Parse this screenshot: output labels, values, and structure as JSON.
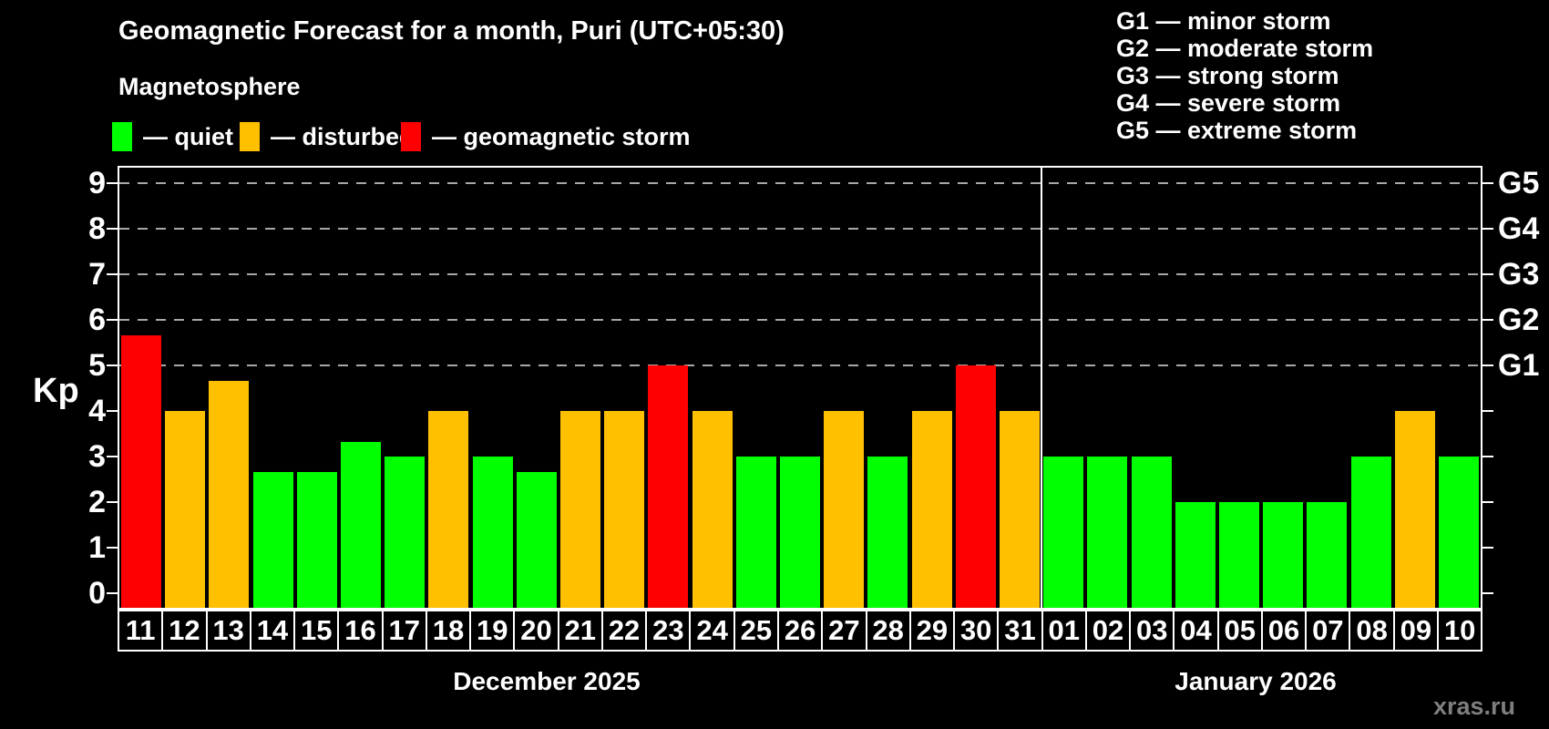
{
  "title": "Geomagnetic Forecast for a month, Puri (UTC+05:30)",
  "subtitle": "Magnetosphere",
  "legend": {
    "items": [
      {
        "key": "quiet",
        "label": "— quiet",
        "color": "#00ff00"
      },
      {
        "key": "disturbed",
        "label": "— disturbed",
        "color": "#ffc000"
      },
      {
        "key": "storm",
        "label": "— geomagnetic storm",
        "color": "#ff0000"
      }
    ]
  },
  "storm_scale_legend": [
    "G1 — minor storm",
    "G2 — moderate storm",
    "G3 — strong storm",
    "G4 — severe storm",
    "G5 — extreme storm"
  ],
  "watermark": "xras.ru",
  "chart_data": {
    "type": "bar",
    "ylabel": "Kp",
    "ylim": [
      -0.32,
      9.38
    ],
    "y_ticks": [
      0,
      1,
      2,
      3,
      4,
      5,
      6,
      7,
      8,
      9
    ],
    "gridlines_at_kp": [
      5,
      6,
      7,
      8,
      9
    ],
    "grid_style": "horizontal dashed gray lines at storm levels only",
    "legend_position": "top",
    "right_axis_labels": [
      {
        "label": "G1",
        "kp": 5
      },
      {
        "label": "G2",
        "kp": 6
      },
      {
        "label": "G3",
        "kp": 7
      },
      {
        "label": "G4",
        "kp": 8
      },
      {
        "label": "G5",
        "kp": 9
      }
    ],
    "status_colors": {
      "quiet": "#00ff00",
      "disturbed": "#ffc000",
      "storm": "#ff0000"
    },
    "months": [
      {
        "label": "December 2025",
        "days": [
          {
            "day": "11",
            "kp": 5.67,
            "status": "storm"
          },
          {
            "day": "12",
            "kp": 4.0,
            "status": "disturbed"
          },
          {
            "day": "13",
            "kp": 4.67,
            "status": "disturbed"
          },
          {
            "day": "14",
            "kp": 2.67,
            "status": "quiet"
          },
          {
            "day": "15",
            "kp": 2.67,
            "status": "quiet"
          },
          {
            "day": "16",
            "kp": 3.33,
            "status": "quiet"
          },
          {
            "day": "17",
            "kp": 3.0,
            "status": "quiet"
          },
          {
            "day": "18",
            "kp": 4.0,
            "status": "disturbed"
          },
          {
            "day": "19",
            "kp": 3.0,
            "status": "quiet"
          },
          {
            "day": "20",
            "kp": 2.67,
            "status": "quiet"
          },
          {
            "day": "21",
            "kp": 4.0,
            "status": "disturbed"
          },
          {
            "day": "22",
            "kp": 4.0,
            "status": "disturbed"
          },
          {
            "day": "23",
            "kp": 5.0,
            "status": "storm"
          },
          {
            "day": "24",
            "kp": 4.0,
            "status": "disturbed"
          },
          {
            "day": "25",
            "kp": 3.0,
            "status": "quiet"
          },
          {
            "day": "26",
            "kp": 3.0,
            "status": "quiet"
          },
          {
            "day": "27",
            "kp": 4.0,
            "status": "disturbed"
          },
          {
            "day": "28",
            "kp": 3.0,
            "status": "quiet"
          },
          {
            "day": "29",
            "kp": 4.0,
            "status": "disturbed"
          },
          {
            "day": "30",
            "kp": 5.0,
            "status": "storm"
          },
          {
            "day": "31",
            "kp": 4.0,
            "status": "disturbed"
          }
        ]
      },
      {
        "label": "January 2026",
        "days": [
          {
            "day": "01",
            "kp": 3.0,
            "status": "quiet"
          },
          {
            "day": "02",
            "kp": 3.0,
            "status": "quiet"
          },
          {
            "day": "03",
            "kp": 3.0,
            "status": "quiet"
          },
          {
            "day": "04",
            "kp": 2.0,
            "status": "quiet"
          },
          {
            "day": "05",
            "kp": 2.0,
            "status": "quiet"
          },
          {
            "day": "06",
            "kp": 2.0,
            "status": "quiet"
          },
          {
            "day": "07",
            "kp": 2.0,
            "status": "quiet"
          },
          {
            "day": "08",
            "kp": 3.0,
            "status": "quiet"
          },
          {
            "day": "09",
            "kp": 4.0,
            "status": "disturbed"
          },
          {
            "day": "10",
            "kp": 3.0,
            "status": "quiet"
          }
        ]
      }
    ]
  }
}
